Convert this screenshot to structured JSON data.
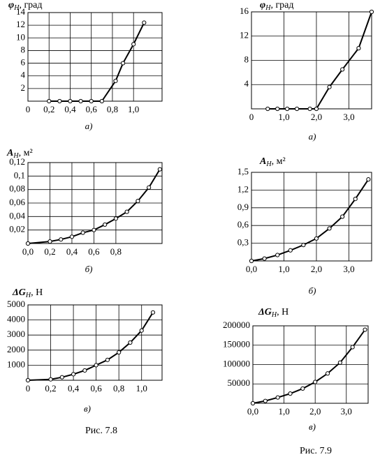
{
  "chart_data": [
    {
      "type": "line",
      "y_label": {
        "symbol": "φ",
        "sub": "Н",
        "unit": ", град"
      },
      "caption": "а)",
      "x": [
        0.2,
        0.3,
        0.4,
        0.5,
        0.6,
        0.7,
        0.83,
        0.9,
        1.0,
        1.1
      ],
      "values": [
        0,
        0,
        0,
        0,
        0,
        0,
        3.2,
        6,
        9,
        12.4
      ],
      "color": "#000000",
      "xlim": [
        0,
        1.27
      ],
      "ylim": [
        0,
        14
      ],
      "xticks": [
        0,
        {
          "value": 0.2,
          "label": "0,2"
        },
        {
          "value": 0.4,
          "label": "0,4"
        },
        {
          "value": 0.6,
          "label": "0,6"
        },
        {
          "value": 0.8,
          "label": "0,8"
        },
        {
          "value": 1.0,
          "label": "1,0"
        }
      ],
      "yticks": [
        2,
        4,
        6,
        8,
        10,
        12,
        14
      ],
      "grid": true
    },
    {
      "type": "line",
      "y_label": {
        "symbol": "A",
        "sub": "Н",
        "unit": ", м²"
      },
      "caption": "б)",
      "x": [
        0,
        0.2,
        0.3,
        0.4,
        0.5,
        0.6,
        0.7,
        0.8,
        0.9,
        1.0,
        1.1,
        1.2
      ],
      "values": [
        0,
        0.003,
        0.006,
        0.01,
        0.016,
        0.02,
        0.028,
        0.037,
        0.047,
        0.063,
        0.083,
        0.11
      ],
      "color": "#000000",
      "xlim": [
        0,
        1.22
      ],
      "ylim": [
        0,
        0.12
      ],
      "xticks": [
        {
          "value": 0,
          "label": "0,0"
        },
        {
          "value": 0.2,
          "label": "0,2"
        },
        {
          "value": 0.4,
          "label": "0,4"
        },
        {
          "value": 0.6,
          "label": "0,6"
        },
        {
          "value": 0.8,
          "label": "0,8"
        }
      ],
      "yticks": [
        {
          "value": 0.02,
          "label": "0,02"
        },
        {
          "value": 0.04,
          "label": "0,04"
        },
        {
          "value": 0.06,
          "label": "0,06"
        },
        {
          "value": 0.08,
          "label": "0,08"
        },
        {
          "value": 0.1,
          "label": "0,1"
        },
        {
          "value": 0.12,
          "label": "0,12"
        }
      ],
      "grid": true
    },
    {
      "type": "line",
      "y_label": {
        "symbol": "ΔG",
        "sub": "Н",
        "unit": ", Н"
      },
      "caption": "в)",
      "x": [
        0,
        0.2,
        0.3,
        0.4,
        0.5,
        0.6,
        0.7,
        0.8,
        0.9,
        1.0,
        1.1
      ],
      "values": [
        0,
        60,
        200,
        400,
        650,
        1000,
        1350,
        1850,
        2500,
        3300,
        4500
      ],
      "color": "#000000",
      "xlim": [
        0,
        1.18
      ],
      "ylim": [
        0,
        5000
      ],
      "xticks": [
        0,
        {
          "value": 0.2,
          "label": "0,2"
        },
        {
          "value": 0.4,
          "label": "0,4"
        },
        {
          "value": 0.6,
          "label": "0,6"
        },
        {
          "value": 0.8,
          "label": "0,8"
        },
        {
          "value": 1.0,
          "label": "1,0"
        }
      ],
      "yticks": [
        1000,
        2000,
        3000,
        4000,
        5000
      ],
      "grid": true
    },
    {
      "type": "line",
      "y_label": {
        "symbol": "φ",
        "sub": "Н",
        "unit": ", град"
      },
      "caption": "а)",
      "x": [
        0.5,
        0.8,
        1.1,
        1.4,
        1.8,
        2.0,
        2.4,
        2.8,
        3.3,
        3.7
      ],
      "values": [
        0,
        0,
        0,
        0,
        0,
        0,
        3.6,
        6.5,
        10,
        16
      ],
      "color": "#000000",
      "xlim": [
        0,
        3.7
      ],
      "ylim": [
        0,
        16
      ],
      "xticks": [
        0,
        {
          "value": 1,
          "label": "1,0"
        },
        {
          "value": 2,
          "label": "2,0"
        },
        {
          "value": 3,
          "label": "3,0"
        }
      ],
      "yticks": [
        4,
        8,
        12,
        16
      ],
      "grid": true
    },
    {
      "type": "line",
      "y_label": {
        "symbol": "A",
        "sub": "Н",
        "unit": ", м²"
      },
      "caption": "б)",
      "x": [
        0,
        0.4,
        0.8,
        1.2,
        1.6,
        2.0,
        2.4,
        2.8,
        3.2,
        3.6
      ],
      "values": [
        0,
        0.04,
        0.1,
        0.18,
        0.27,
        0.38,
        0.55,
        0.75,
        1.05,
        1.38
      ],
      "color": "#000000",
      "xlim": [
        0,
        3.7
      ],
      "ylim": [
        0,
        1.5
      ],
      "xticks": [
        {
          "value": 0,
          "label": "0,0"
        },
        {
          "value": 1,
          "label": "1,0"
        },
        {
          "value": 2,
          "label": "2,0"
        },
        {
          "value": 3,
          "label": "3,0"
        }
      ],
      "yticks": [
        {
          "value": 0.3,
          "label": "0,3"
        },
        {
          "value": 0.6,
          "label": "0,6"
        },
        {
          "value": 0.9,
          "label": "0,9"
        },
        {
          "value": 1.2,
          "label": "1,2"
        },
        {
          "value": 1.5,
          "label": "1,5"
        }
      ],
      "grid": true
    },
    {
      "type": "line",
      "y_label": {
        "symbol": "ΔG",
        "sub": "Н",
        "unit": ", Н"
      },
      "caption": "в)",
      "x": [
        0,
        0.4,
        0.8,
        1.2,
        1.6,
        2.0,
        2.4,
        2.8,
        3.2,
        3.6
      ],
      "values": [
        0,
        6000,
        15000,
        25000,
        38000,
        55000,
        77000,
        105000,
        145000,
        190000
      ],
      "color": "#000000",
      "xlim": [
        0,
        3.7
      ],
      "ylim": [
        0,
        200000
      ],
      "xticks": [
        {
          "value": 0,
          "label": "0,0"
        },
        {
          "value": 1,
          "label": "1,0"
        },
        {
          "value": 2,
          "label": "2,0"
        },
        {
          "value": 3,
          "label": "3,0"
        }
      ],
      "yticks": [
        50000,
        100000,
        150000,
        200000
      ],
      "grid": true
    }
  ],
  "figure_captions": [
    "Рис. 7.8",
    "Рис. 7.9"
  ]
}
